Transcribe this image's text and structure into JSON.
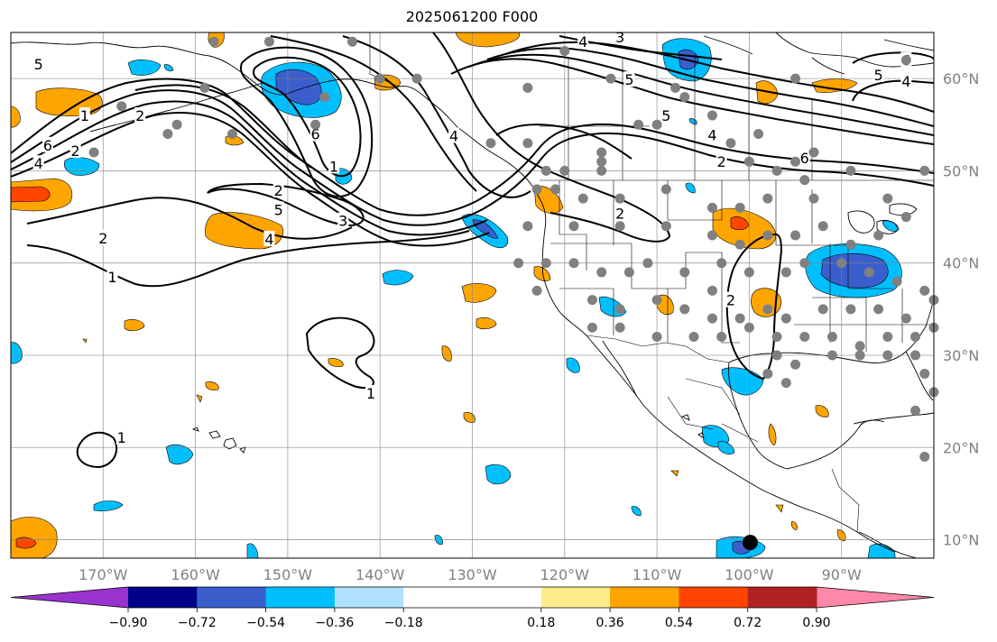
{
  "header": {
    "title": "2025061200 F000"
  },
  "map": {
    "projection": "plate-carree",
    "lon_range": [
      -180,
      -80
    ],
    "lat_range": [
      8,
      65
    ],
    "lon_ticks": [
      {
        "lon": -170,
        "label": "170°W"
      },
      {
        "lon": -160,
        "label": "160°W"
      },
      {
        "lon": -150,
        "label": "150°W"
      },
      {
        "lon": -140,
        "label": "140°W"
      },
      {
        "lon": -130,
        "label": "130°W"
      },
      {
        "lon": -120,
        "label": "120°W"
      },
      {
        "lon": -110,
        "label": "110°W"
      },
      {
        "lon": -100,
        "label": "100°W"
      },
      {
        "lon": -90,
        "label": "90°W"
      }
    ],
    "lat_ticks": [
      {
        "lat": 10,
        "label": "10°N"
      },
      {
        "lat": 20,
        "label": "20°N"
      },
      {
        "lat": 30,
        "label": "30°N"
      },
      {
        "lat": 40,
        "label": "40°N"
      },
      {
        "lat": 50,
        "label": "50°N"
      },
      {
        "lat": 60,
        "label": "60°N"
      }
    ],
    "gridlines": true,
    "contour_labels": [
      {
        "text": "5",
        "lon": -177,
        "lat": 61.6
      },
      {
        "text": "1",
        "lon": -172,
        "lat": 56.0
      },
      {
        "text": "2",
        "lon": -166,
        "lat": 56.0
      },
      {
        "text": "6",
        "lon": -176,
        "lat": 52.8
      },
      {
        "text": "2",
        "lon": -173,
        "lat": 52.2
      },
      {
        "text": "4",
        "lon": -177,
        "lat": 50.8
      },
      {
        "text": "2",
        "lon": -170,
        "lat": 42.7
      },
      {
        "text": "1",
        "lon": -169,
        "lat": 38.5
      },
      {
        "text": "6",
        "lon": -147,
        "lat": 54.0
      },
      {
        "text": "1",
        "lon": -145,
        "lat": 50.5
      },
      {
        "text": "2",
        "lon": -151,
        "lat": 47.9
      },
      {
        "text": "5",
        "lon": -151,
        "lat": 45.8
      },
      {
        "text": "3",
        "lon": -144,
        "lat": 44.6
      },
      {
        "text": "4",
        "lon": -152,
        "lat": 42.6
      },
      {
        "text": "4",
        "lon": -132,
        "lat": 53.8
      },
      {
        "text": "4",
        "lon": -118,
        "lat": 64.0
      },
      {
        "text": "3",
        "lon": -114,
        "lat": 64.5
      },
      {
        "text": "5",
        "lon": -113,
        "lat": 59.9
      },
      {
        "text": "5",
        "lon": -109,
        "lat": 56.0
      },
      {
        "text": "4",
        "lon": -104,
        "lat": 53.9
      },
      {
        "text": "2",
        "lon": -103,
        "lat": 51.0
      },
      {
        "text": "6",
        "lon": -94,
        "lat": 51.4
      },
      {
        "text": "5",
        "lon": -86,
        "lat": 60.4
      },
      {
        "text": "6",
        "lon": -83,
        "lat": 62.0
      },
      {
        "text": "4",
        "lon": -83,
        "lat": 59.7
      },
      {
        "text": "2",
        "lon": -114,
        "lat": 45.4
      },
      {
        "text": "2",
        "lon": -102,
        "lat": 36.0
      },
      {
        "text": "1",
        "lon": -141,
        "lat": 25.9
      },
      {
        "text": "1",
        "lon": -168,
        "lat": 21.1
      }
    ],
    "station_color": "#808080",
    "stations": [
      [
        -158,
        64
      ],
      [
        -152,
        64
      ],
      [
        -143,
        64
      ],
      [
        -159,
        59
      ],
      [
        -168,
        57
      ],
      [
        -162,
        55
      ],
      [
        -156,
        54
      ],
      [
        -147,
        55
      ],
      [
        -171,
        52
      ],
      [
        -163,
        54
      ],
      [
        -146,
        58
      ],
      [
        -140,
        60
      ],
      [
        -136,
        60
      ],
      [
        -120,
        63
      ],
      [
        -124,
        59
      ],
      [
        -108,
        59
      ],
      [
        -107,
        58
      ],
      [
        -115,
        60
      ],
      [
        -95,
        60
      ],
      [
        -83,
        62
      ],
      [
        -128,
        53
      ],
      [
        -124,
        53
      ],
      [
        -116,
        52
      ],
      [
        -112,
        55
      ],
      [
        -110,
        55
      ],
      [
        -104,
        56
      ],
      [
        -102,
        53
      ],
      [
        -99,
        54
      ],
      [
        -95,
        51
      ],
      [
        -93,
        52
      ],
      [
        -100,
        51
      ],
      [
        -97,
        50
      ],
      [
        -116,
        51
      ],
      [
        -116,
        50
      ],
      [
        -122,
        50
      ],
      [
        -120,
        50
      ],
      [
        -123,
        48
      ],
      [
        -121,
        48
      ],
      [
        -118,
        47
      ],
      [
        -114,
        47
      ],
      [
        -109,
        48
      ],
      [
        -104,
        46
      ],
      [
        -101,
        46
      ],
      [
        -98,
        47
      ],
      [
        -94,
        49
      ],
      [
        -93,
        47
      ],
      [
        -89,
        50
      ],
      [
        -85,
        47
      ],
      [
        -83,
        45
      ],
      [
        -81,
        50
      ],
      [
        -124,
        44
      ],
      [
        -119,
        44
      ],
      [
        -114,
        44
      ],
      [
        -109,
        44
      ],
      [
        -104,
        43
      ],
      [
        -101,
        42
      ],
      [
        -98,
        43
      ],
      [
        -95,
        43
      ],
      [
        -92,
        44
      ],
      [
        -89,
        42
      ],
      [
        -86,
        43
      ],
      [
        -125,
        40
      ],
      [
        -122,
        40
      ],
      [
        -119,
        40
      ],
      [
        -116,
        39
      ],
      [
        -113,
        39
      ],
      [
        -111,
        40
      ],
      [
        -107,
        39
      ],
      [
        -103,
        40
      ],
      [
        -100,
        39
      ],
      [
        -96,
        39
      ],
      [
        -94,
        40
      ],
      [
        -90,
        40
      ],
      [
        -87,
        39
      ],
      [
        -84,
        38
      ],
      [
        -81,
        37
      ],
      [
        -123,
        37
      ],
      [
        -117,
        36
      ],
      [
        -114,
        35
      ],
      [
        -110,
        36
      ],
      [
        -107,
        35
      ],
      [
        -104,
        34
      ],
      [
        -101,
        34
      ],
      [
        -98,
        35
      ],
      [
        -96,
        34
      ],
      [
        -92,
        35
      ],
      [
        -89,
        35
      ],
      [
        -86,
        35
      ],
      [
        -83,
        34
      ],
      [
        -80,
        36
      ],
      [
        -114,
        33
      ],
      [
        -110,
        32
      ],
      [
        -106,
        32
      ],
      [
        -103,
        32
      ],
      [
        -100,
        33
      ],
      [
        -97,
        32
      ],
      [
        -94,
        32
      ],
      [
        -91,
        32
      ],
      [
        -88,
        31
      ],
      [
        -85,
        32
      ],
      [
        -82,
        32
      ],
      [
        -80,
        33
      ],
      [
        -97,
        30
      ],
      [
        -95,
        29
      ],
      [
        -91,
        30
      ],
      [
        -88,
        30
      ],
      [
        -85,
        30
      ],
      [
        -82,
        30
      ],
      [
        -98,
        28
      ],
      [
        -96,
        27
      ],
      [
        -81,
        28
      ],
      [
        -80,
        26
      ],
      [
        -82,
        24
      ],
      [
        -81,
        19
      ],
      [
        -117,
        33
      ],
      [
        -104,
        37
      ]
    ],
    "marker": {
      "lon": -99.9,
      "lat": 9.7,
      "color": "#000000"
    }
  },
  "colorbar": {
    "tick_labels": [
      "−0.90",
      "−0.72",
      "−0.54",
      "−0.36",
      "−0.18",
      "0.18",
      "0.36",
      "0.54",
      "0.72",
      "0.90"
    ],
    "tick_values": [
      -0.9,
      -0.72,
      -0.54,
      -0.36,
      -0.18,
      0.18,
      0.36,
      0.54,
      0.72,
      0.9
    ],
    "low_extend_color": "#9a32cd",
    "high_extend_color": "#ff88aa",
    "colors": [
      "#000088",
      "#3a5fcd",
      "#00bfff",
      "#b0e2ff",
      "#ffffff",
      "#ffec8b",
      "#ffa500",
      "#ff4500",
      "#b22222"
    ]
  },
  "shading": {
    "cyan": "#00bfff",
    "blue": "#3a5fcd",
    "orange": "#ffa500",
    "red": "#ff4500"
  }
}
